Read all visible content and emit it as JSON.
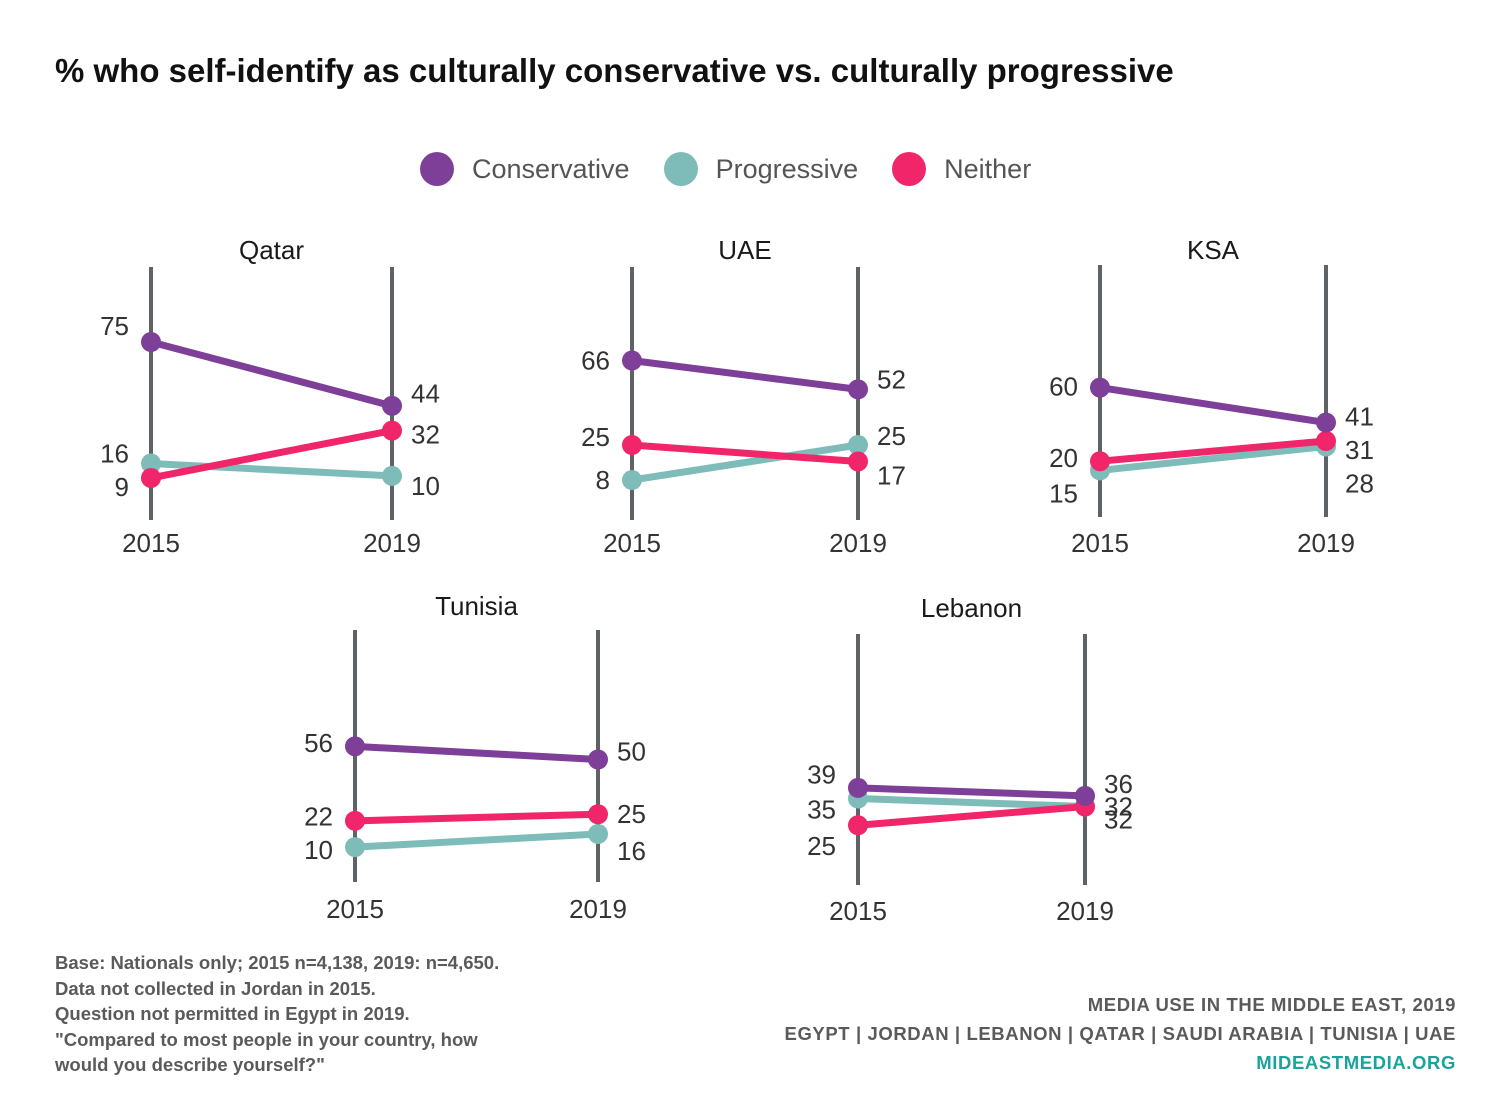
{
  "title": "% who self-identify as culturally conservative vs. culturally progressive",
  "legend": [
    {
      "label": "Conservative",
      "color": "#7e3f98"
    },
    {
      "label": "Progressive",
      "color": "#7dbcb8"
    },
    {
      "label": "Neither",
      "color": "#f0256a"
    }
  ],
  "chart_data": [
    {
      "type": "slope",
      "title": "Qatar",
      "x": [
        "2015",
        "2019"
      ],
      "series": [
        {
          "name": "Conservative",
          "values": [
            75,
            44
          ]
        },
        {
          "name": "Progressive",
          "values": [
            16,
            10
          ]
        },
        {
          "name": "Neither",
          "values": [
            9,
            32
          ]
        }
      ]
    },
    {
      "type": "slope",
      "title": "UAE",
      "x": [
        "2015",
        "2019"
      ],
      "series": [
        {
          "name": "Conservative",
          "values": [
            66,
            52
          ]
        },
        {
          "name": "Progressive",
          "values": [
            8,
            25
          ]
        },
        {
          "name": "Neither",
          "values": [
            25,
            17
          ]
        }
      ]
    },
    {
      "type": "slope",
      "title": "KSA",
      "x": [
        "2015",
        "2019"
      ],
      "series": [
        {
          "name": "Conservative",
          "values": [
            60,
            41
          ]
        },
        {
          "name": "Progressive",
          "values": [
            15,
            28
          ]
        },
        {
          "name": "Neither",
          "values": [
            20,
            31
          ]
        }
      ]
    },
    {
      "type": "slope",
      "title": "Tunisia",
      "x": [
        "2015",
        "2019"
      ],
      "series": [
        {
          "name": "Conservative",
          "values": [
            56,
            50
          ]
        },
        {
          "name": "Progressive",
          "values": [
            10,
            16
          ]
        },
        {
          "name": "Neither",
          "values": [
            22,
            25
          ]
        }
      ]
    },
    {
      "type": "slope",
      "title": "Lebanon",
      "x": [
        "2015",
        "2019"
      ],
      "series": [
        {
          "name": "Conservative",
          "values": [
            39,
            36
          ]
        },
        {
          "name": "Progressive",
          "values": [
            35,
            32
          ]
        },
        {
          "name": "Neither",
          "values": [
            25,
            32
          ]
        }
      ]
    }
  ],
  "notes": [
    "Base: Nationals only; 2015 n=4,138, 2019: n=4,650.",
    "Data not collected in Jordan in 2015.",
    "Question not permitted in Egypt in 2019.",
    "\"Compared to most people in your country, how",
    "would you describe yourself?\""
  ],
  "credits": {
    "line1": "MEDIA USE IN THE MIDDLE EAST, 2019",
    "line2": "EGYPT | JORDAN | LEBANON | QATAR | SAUDI ARABIA | TUNISIA | UAE",
    "site": "MIDEASTMEDIA.ORG"
  }
}
